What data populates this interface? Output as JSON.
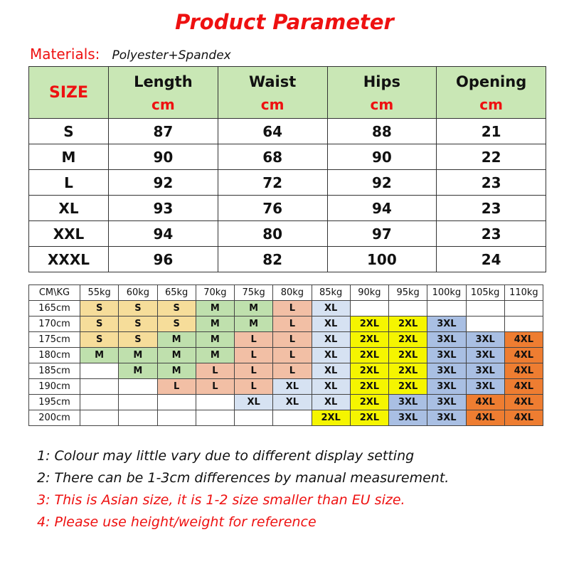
{
  "title": "Product Parameter",
  "materials": {
    "label": "Materials:",
    "value": "Polyester+Spandex"
  },
  "size_table": {
    "size_header": "SIZE",
    "columns": [
      {
        "name": "Length",
        "unit": "cm"
      },
      {
        "name": "Waist",
        "unit": "cm"
      },
      {
        "name": "Hips",
        "unit": "cm"
      },
      {
        "name": "Opening",
        "unit": "cm"
      }
    ],
    "rows": [
      {
        "size": "S",
        "values": [
          "87",
          "64",
          "88",
          "21"
        ]
      },
      {
        "size": "M",
        "values": [
          "90",
          "68",
          "90",
          "22"
        ]
      },
      {
        "size": "L",
        "values": [
          "92",
          "72",
          "92",
          "23"
        ]
      },
      {
        "size": "XL",
        "values": [
          "93",
          "76",
          "94",
          "23"
        ]
      },
      {
        "size": "XXL",
        "values": [
          "94",
          "80",
          "97",
          "23"
        ]
      },
      {
        "size": "XXXL",
        "values": [
          "96",
          "82",
          "100",
          "24"
        ]
      }
    ]
  },
  "chart": {
    "corner": "CM\\KG",
    "weights": [
      "55kg",
      "60kg",
      "65kg",
      "70kg",
      "75kg",
      "80kg",
      "85kg",
      "90kg",
      "95kg",
      "100kg",
      "105kg",
      "110kg"
    ],
    "rows": [
      {
        "height": "165cm",
        "cells": [
          "S",
          "S",
          "S",
          "M",
          "M",
          "L",
          "XL",
          "",
          "",
          "",
          "",
          ""
        ]
      },
      {
        "height": "170cm",
        "cells": [
          "S",
          "S",
          "S",
          "M",
          "M",
          "L",
          "XL",
          "2XL",
          "2XL",
          "3XL",
          "",
          ""
        ]
      },
      {
        "height": "175cm",
        "cells": [
          "S",
          "S",
          "M",
          "M",
          "L",
          "L",
          "XL",
          "2XL",
          "2XL",
          "3XL",
          "3XL",
          "4XL"
        ]
      },
      {
        "height": "180cm",
        "cells": [
          "M",
          "M",
          "M",
          "M",
          "L",
          "L",
          "XL",
          "2XL",
          "2XL",
          "3XL",
          "3XL",
          "4XL"
        ]
      },
      {
        "height": "185cm",
        "cells": [
          "",
          "M",
          "M",
          "L",
          "L",
          "L",
          "XL",
          "2XL",
          "2XL",
          "3XL",
          "3XL",
          "4XL"
        ]
      },
      {
        "height": "190cm",
        "cells": [
          "",
          "",
          "L",
          "L",
          "L",
          "XL",
          "XL",
          "2XL",
          "2XL",
          "3XL",
          "3XL",
          "4XL"
        ]
      },
      {
        "height": "195cm",
        "cells": [
          "",
          "",
          "",
          "",
          "XL",
          "XL",
          "XL",
          "2XL",
          "3XL",
          "3XL",
          "4XL",
          "4XL"
        ]
      },
      {
        "height": "200cm",
        "cells": [
          "",
          "",
          "",
          "",
          "",
          "",
          "2XL",
          "2XL",
          "3XL",
          "3XL",
          "4XL",
          "4XL"
        ]
      }
    ]
  },
  "colors": {
    "title": "#ee1111",
    "header_bg": "#c9e7b5",
    "S": "#f6dd9a",
    "M": "#bfe0ad",
    "L": "#f2bfa5",
    "XL": "#d6e2f2",
    "2XL": "#f5f500",
    "3XL": "#a9bfe3",
    "4XL": "#ee7d31"
  },
  "notes": [
    {
      "text": "1: Colour may little vary due to different display setting",
      "color": "#111111"
    },
    {
      "text": "2: There can be 1-3cm differences by manual measurement.",
      "color": "#111111"
    },
    {
      "text": "3: This is Asian size, it is 1-2 size smaller than EU size.",
      "color": "#ee1111"
    },
    {
      "text": "4: Please use height/weight for reference",
      "color": "#ee1111"
    }
  ]
}
